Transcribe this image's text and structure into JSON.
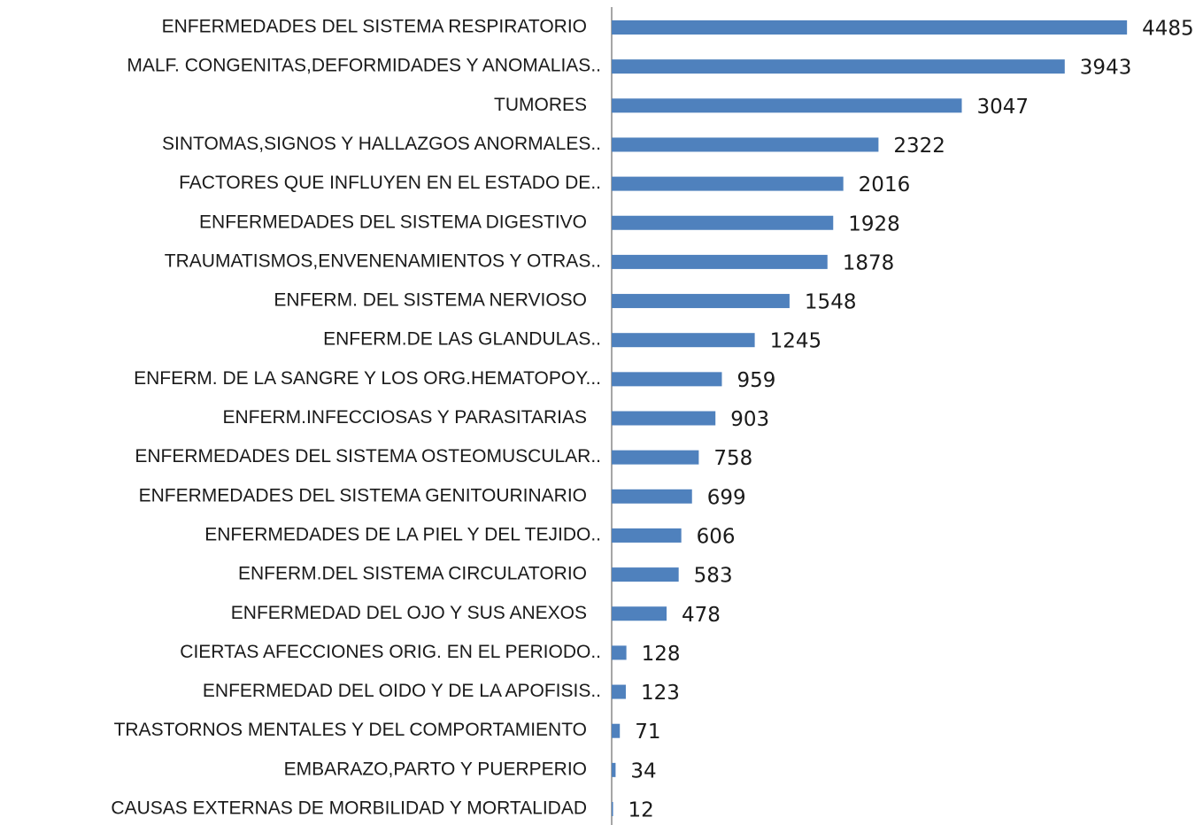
{
  "chart_data": {
    "type": "barh",
    "categories": [
      "ENFERMEDADES DEL SISTEMA RESPIRATORIO",
      "MALF. CONGENITAS,DEFORMIDADES Y ANOMALIAS..",
      "TUMORES",
      "SINTOMAS,SIGNOS Y HALLAZGOS ANORMALES..",
      "FACTORES QUE INFLUYEN EN EL ESTADO DE..",
      "ENFERMEDADES DEL SISTEMA DIGESTIVO",
      "TRAUMATISMOS,ENVENENAMIENTOS Y OTRAS..",
      "ENFERM. DEL SISTEMA NERVIOSO",
      "ENFERM.DE LAS GLANDULAS..",
      "ENFERM. DE LA SANGRE Y LOS ORG.HEMATOPOY...",
      "ENFERM.INFECCIOSAS Y PARASITARIAS",
      "ENFERMEDADES DEL SISTEMA OSTEOMUSCULAR..",
      "ENFERMEDADES DEL SISTEMA GENITOURINARIO",
      "ENFERMEDADES DE LA PIEL Y DEL TEJIDO..",
      "ENFERM.DEL SISTEMA CIRCULATORIO",
      "ENFERMEDAD DEL OJO Y SUS ANEXOS",
      "CIERTAS AFECCIONES ORIG. EN EL PERIODO..",
      "ENFERMEDAD DEL OIDO Y DE LA APOFISIS..",
      "TRASTORNOS MENTALES Y DEL COMPORTAMIENTO",
      "EMBARAZO,PARTO Y PUERPERIO",
      "CAUSAS EXTERNAS DE MORBILIDAD Y MORTALIDAD"
    ],
    "values": [
      4485,
      3943,
      3047,
      2322,
      2016,
      1928,
      1878,
      1548,
      1245,
      959,
      903,
      758,
      699,
      606,
      583,
      478,
      128,
      123,
      71,
      34,
      12
    ],
    "color": "#4f81bd",
    "xlim": [
      0,
      5000
    ]
  }
}
